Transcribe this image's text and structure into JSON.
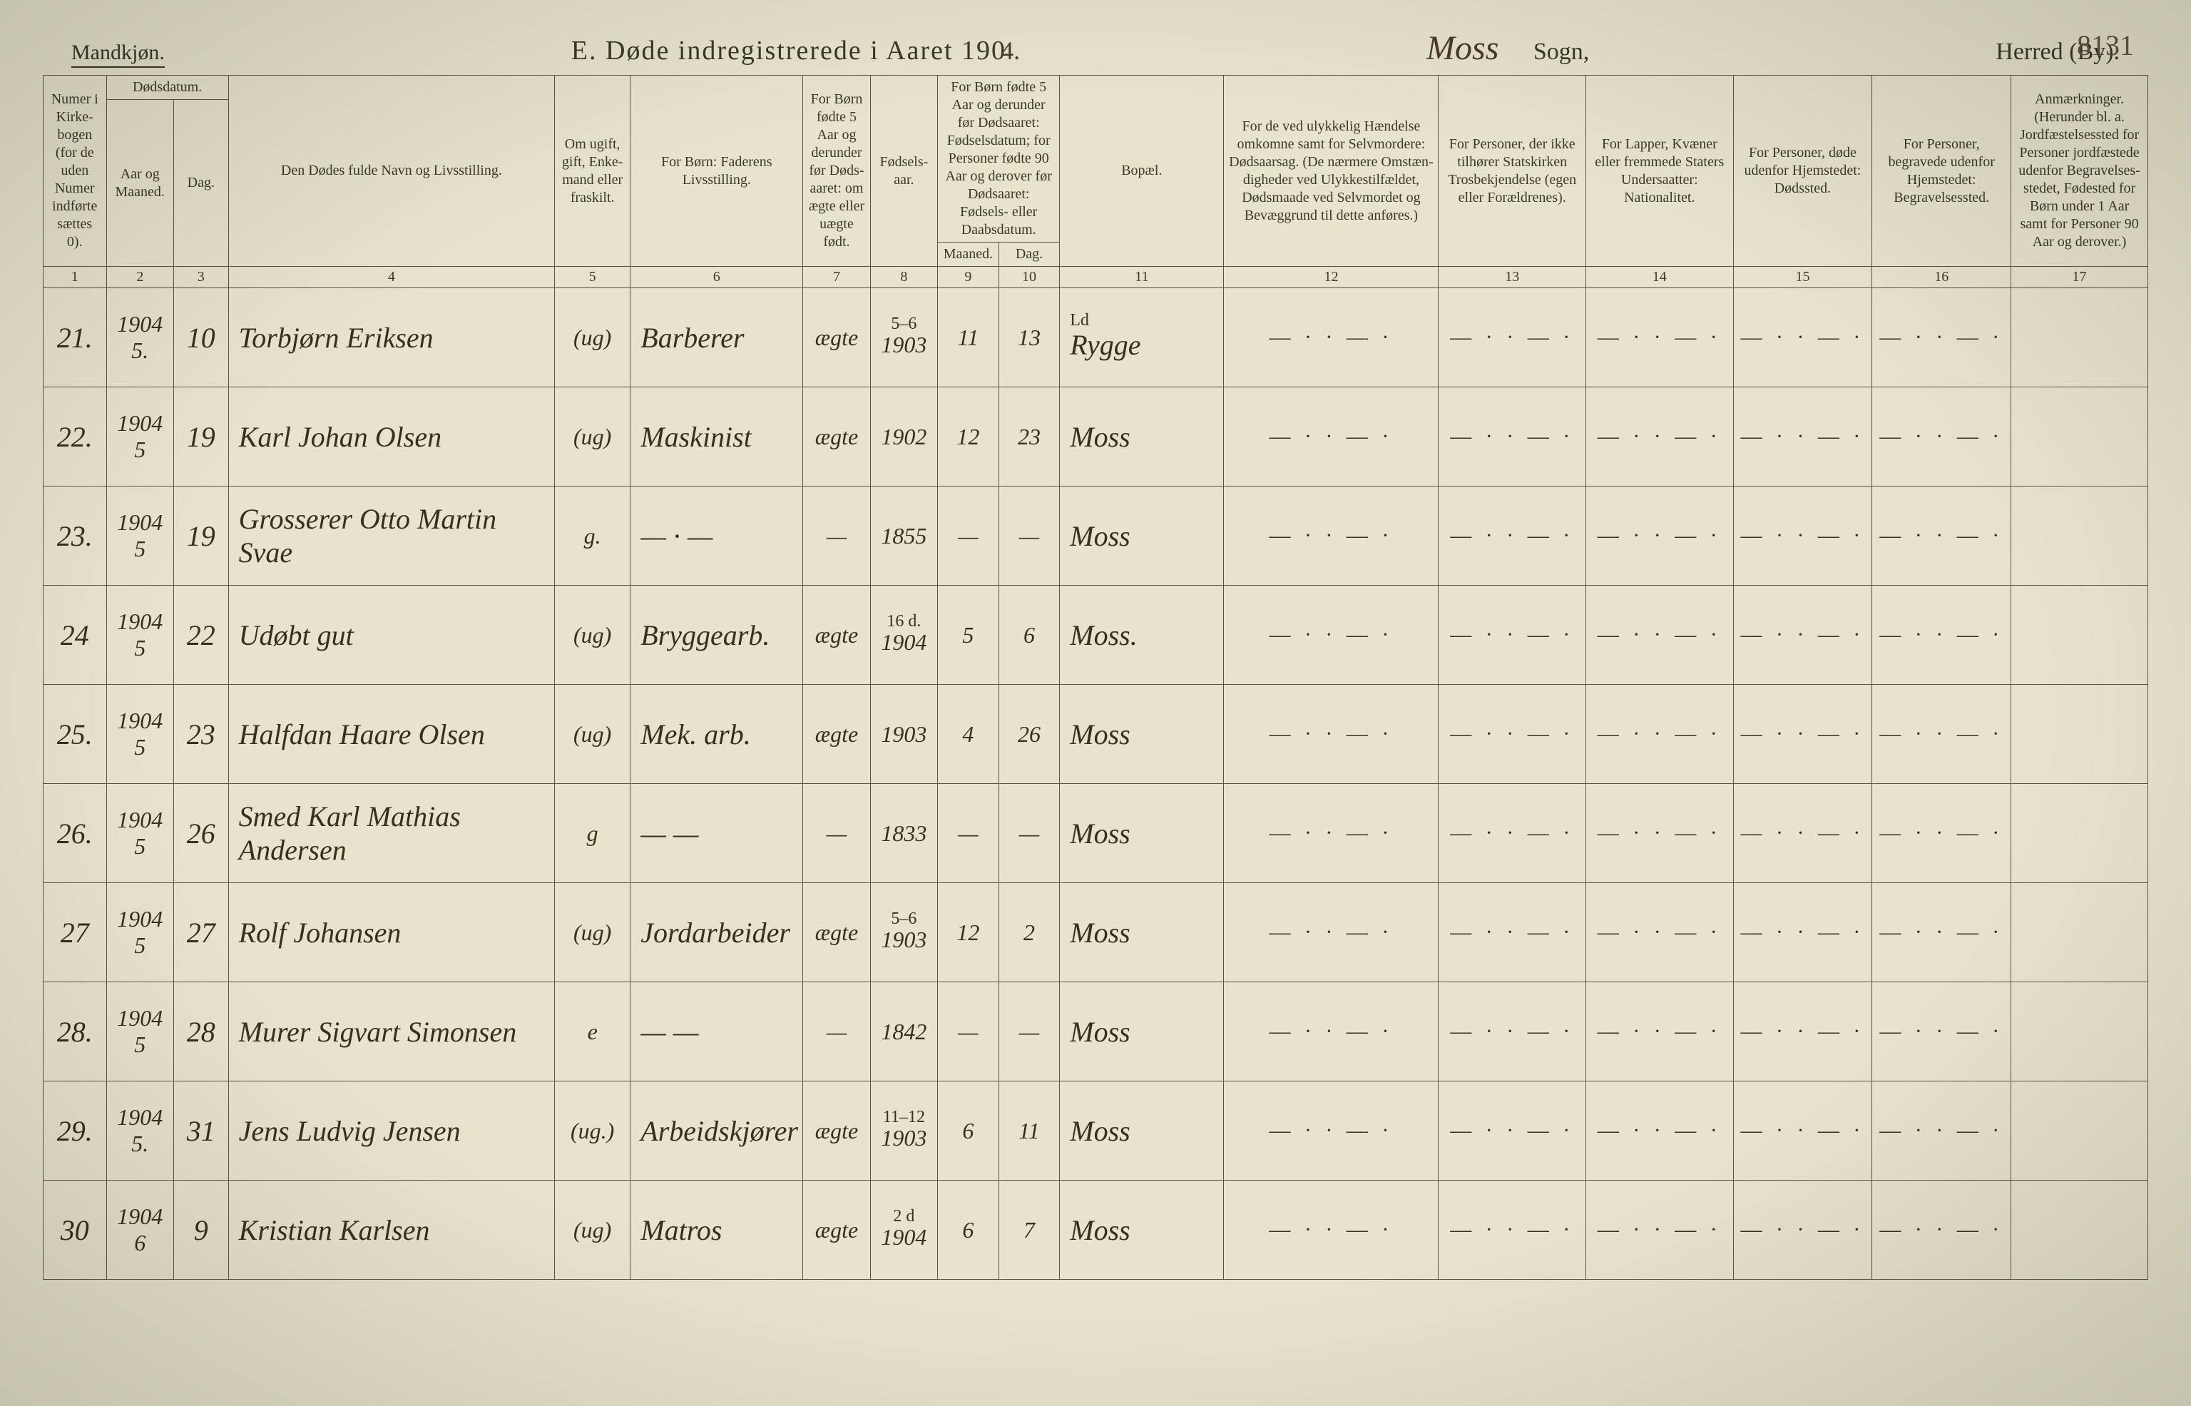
{
  "page_number_handwritten": "8131",
  "header": {
    "mandkjon": "Mandkjøn.",
    "title_prefix": "E.   Døde indregistrerede i Aaret 190",
    "title_year_hand": "4.",
    "sogn_hand": "Moss",
    "sogn_label": "Sogn,",
    "herred": "Herred (By)."
  },
  "columns": {
    "c1": "Numer i Kirke­bogen (for de uden Numer indførte sættes 0).",
    "c2": "Aar og Maaned.",
    "c2top": "Dødsdatum.",
    "c3": "Dag.",
    "c4": "Den Dødes fulde Navn og Livsstilling.",
    "c5": "Om ugift, gift, Enke­mand eller fraskilt.",
    "c6": "For Børn: Faderens Livsstilling.",
    "c7": "For Børn fødte 5 Aar og derunder før Døds­aaret: om ægte eller uægte født.",
    "c8": "Fødsels­aar.",
    "c9_10_top": "For Børn fødte 5 Aar og der­under før Dødsaaret: Fødselsdatum; for Personer fødte 90 Aar og derover før Dødsaaret: Fødsels- eller Daabsdatum.",
    "c9": "Maaned.",
    "c10": "Dag.",
    "c11": "Bopæl.",
    "c12": "For de ved ulykkelig Hændelse omkomne samt for Selvmordere: Dødsaarsag. (De nærmere Omstæn­digheder ved Ulykkes­tilfældet, Dødsmaade ved Selvmordet og Bevæggrund til dette anføres.)",
    "c13": "For Personer, der ikke tilhører Statskirken Trosbekjendelse (egen eller Forældrenes).",
    "c14": "For Lapper, Kvæner eller fremmede Staters Undersaatter: Nationalitet.",
    "c15": "For Personer, døde udenfor Hjemstedet: Dødssted.",
    "c16": "For Personer, begravede udenfor Hjemstedet: Begravelsessted.",
    "c17": "Anmærkninger. (Herunder bl. a. Jordfæstelsessted for Personer jordfæstede udenfor Begravelses­stedet, Fødested for Børn under 1 Aar samt for Personer 90 Aar og derover.)"
  },
  "colnums": [
    "1",
    "2",
    "3",
    "4",
    "5",
    "6",
    "7",
    "8",
    "9",
    "10",
    "11",
    "12",
    "13",
    "14",
    "15",
    "16",
    "17"
  ],
  "dash_pattern": "— · · — ·",
  "rows": [
    {
      "num": "21.",
      "yr_mo": "1904 5.",
      "day": "10",
      "name": "Torbjørn Eriksen",
      "status": "(ug)",
      "father": "Barberer",
      "legit": "ægte",
      "birthyr": "1903",
      "note_top": "5–6",
      "b_mo": "11",
      "b_day": "13",
      "place": "Rygge",
      "place_note": "Ld"
    },
    {
      "num": "22.",
      "yr_mo": "1904 5",
      "day": "19",
      "name": "Karl Johan Olsen",
      "status": "(ug)",
      "father": "Maskinist",
      "legit": "ægte",
      "birthyr": "1902",
      "note_top": "",
      "b_mo": "12",
      "b_day": "23",
      "place": "Moss"
    },
    {
      "num": "23.",
      "yr_mo": "1904 5",
      "day": "19",
      "name": "Grosserer Otto Martin Svae",
      "status": "g.",
      "father": "— · —",
      "legit": "—",
      "birthyr": "1855",
      "note_top": "",
      "b_mo": "—",
      "b_day": "—",
      "place": "Moss"
    },
    {
      "num": "24",
      "yr_mo": "1904 5",
      "day": "22",
      "name": "Udøbt gut",
      "status": "(ug)",
      "father": "Bryggearb.",
      "legit": "ægte",
      "birthyr": "1904",
      "note_top": "16 d.",
      "b_mo": "5",
      "b_day": "6",
      "place": "Moss."
    },
    {
      "num": "25.",
      "yr_mo": "1904 5",
      "day": "23",
      "name": "Halfdan Haare Olsen",
      "status": "(ug)",
      "father": "Mek. arb.",
      "legit": "ægte",
      "birthyr": "1903",
      "note_top": "",
      "b_mo": "4",
      "b_day": "26",
      "place": "Moss"
    },
    {
      "num": "26.",
      "yr_mo": "1904 5",
      "day": "26",
      "name": "Smed Karl Mathias Andersen",
      "status": "g",
      "father": "— —",
      "legit": "—",
      "birthyr": "1833",
      "note_top": "",
      "b_mo": "—",
      "b_day": "—",
      "place": "Moss"
    },
    {
      "num": "27",
      "yr_mo": "1904 5",
      "day": "27",
      "name": "Rolf Johansen",
      "status": "(ug)",
      "father": "Jordarbeider",
      "legit": "ægte",
      "birthyr": "1903",
      "note_top": "5–6",
      "b_mo": "12",
      "b_day": "2",
      "place": "Moss"
    },
    {
      "num": "28.",
      "yr_mo": "1904 5",
      "day": "28",
      "name": "Murer Sigvart Simonsen",
      "status": "e",
      "father": "— —",
      "legit": "—",
      "birthyr": "1842",
      "note_top": "",
      "b_mo": "—",
      "b_day": "—",
      "place": "Moss"
    },
    {
      "num": "29.",
      "yr_mo": "1904 5.",
      "day": "31",
      "name": "Jens Ludvig Jensen",
      "status": "(ug.)",
      "father": "Arbeidskjører",
      "legit": "ægte",
      "birthyr": "1903",
      "note_top": "11–12",
      "b_mo": "6",
      "b_day": "11",
      "place": "Moss"
    },
    {
      "num": "30",
      "yr_mo": "1904 6",
      "day": "9",
      "name": "Kristian Karlsen",
      "status": "(ug)",
      "father": "Matros",
      "legit": "ægte",
      "birthyr": "1904",
      "note_top": "2 d",
      "b_mo": "6",
      "b_day": "7",
      "place": "Moss"
    }
  ]
}
